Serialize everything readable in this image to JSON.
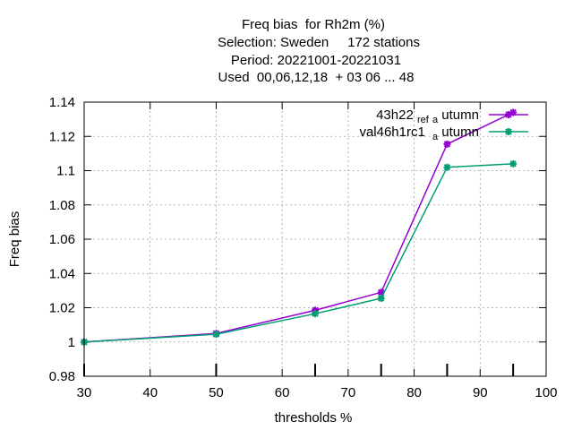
{
  "chart_data": {
    "type": "line",
    "title_lines": [
      "Freq bias  for Rh2m (%)",
      "Selection: Sweden     172 stations",
      "Period: 20221001-20221031",
      "Used  00,06,12,18  + 03 06 ... 48"
    ],
    "xlabel": "thresholds %",
    "ylabel": "Freq bias",
    "xlim": [
      30,
      100
    ],
    "ylim": [
      0.98,
      1.14
    ],
    "xticks": [
      30,
      40,
      50,
      60,
      70,
      80,
      90,
      100
    ],
    "yticks": [
      0.98,
      1,
      1.02,
      1.04,
      1.06,
      1.08,
      1.1,
      1.12,
      1.14
    ],
    "grid": true,
    "legend_position": "top-right",
    "series": [
      {
        "name_parts": [
          "43h22",
          "ref",
          "a",
          "utumn"
        ],
        "color": "#9400d3",
        "x": [
          30,
          50,
          65,
          75,
          85,
          95
        ],
        "values": [
          1.0,
          1.005,
          1.0185,
          1.029,
          1.1155,
          1.134
        ]
      },
      {
        "name_parts": [
          "val46h1rc1",
          "",
          "a",
          "utumn"
        ],
        "color": "#009e73",
        "x": [
          30,
          50,
          65,
          75,
          85,
          95
        ],
        "values": [
          1.0,
          1.0045,
          1.0165,
          1.0255,
          1.102,
          1.104
        ]
      }
    ]
  }
}
